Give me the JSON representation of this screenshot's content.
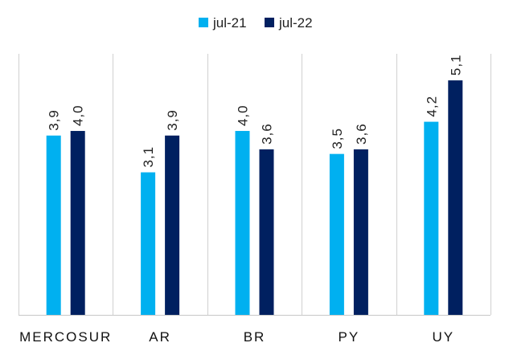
{
  "chart_data": {
    "type": "bar",
    "categories": [
      "MERCOSUR",
      "AR",
      "BR",
      "PY",
      "UY"
    ],
    "series": [
      {
        "name": "jul-21",
        "values": [
          3.9,
          3.1,
          4.0,
          3.5,
          4.2
        ],
        "labels": [
          "3,9",
          "3,1",
          "4,0",
          "3,5",
          "4,2"
        ],
        "color": "#00B0F0"
      },
      {
        "name": "jul-22",
        "values": [
          4.0,
          3.9,
          3.6,
          3.6,
          5.1
        ],
        "labels": [
          "4,0",
          "3,9",
          "3,6",
          "3,6",
          "5,1"
        ],
        "color": "#002060"
      }
    ],
    "ylim": [
      0,
      5.8
    ],
    "grid": false,
    "category_separators": true,
    "legend": "top-center",
    "title": "",
    "xlabel": "",
    "ylabel": ""
  }
}
